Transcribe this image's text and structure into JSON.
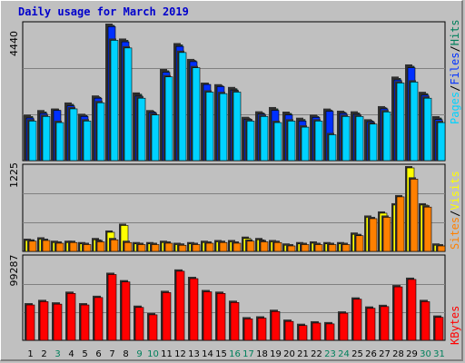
{
  "title": "Daily usage for March 2019",
  "colors": {
    "hits": "#00805c",
    "files": "#0030ff",
    "pages": "#00d2ff",
    "visits": "#ffff00",
    "sites": "#ff8000",
    "kbytes": "#ff0000",
    "separator": "#000000",
    "weekday_label": "#000000",
    "weekend_label": "#00805c"
  },
  "chart_data": [
    {
      "type": "bar",
      "name": "hits-files-pages",
      "ymax_label": "4440",
      "ylim": [
        0,
        4440
      ],
      "legend": [
        "Pages",
        "/",
        "Files",
        "/",
        "Hits"
      ],
      "categories": [
        "1",
        "2",
        "3",
        "4",
        "5",
        "6",
        "7",
        "8",
        "9",
        "10",
        "11",
        "12",
        "13",
        "14",
        "15",
        "16",
        "17",
        "18",
        "19",
        "20",
        "21",
        "22",
        "23",
        "24",
        "25",
        "26",
        "27",
        "28",
        "29",
        "30",
        "31"
      ],
      "weekend_days": [
        3,
        9,
        10,
        16,
        17,
        23,
        24,
        30,
        31
      ],
      "series": [
        {
          "name": "Hits",
          "values": [
            1450,
            1600,
            1650,
            1850,
            1480,
            2080,
            4440,
            3950,
            2180,
            1600,
            2950,
            3800,
            3280,
            2500,
            2450,
            2360,
            1380,
            1560,
            1700,
            1550,
            1350,
            1450,
            1650,
            1580,
            1560,
            1300,
            1730,
            2700,
            3100,
            2200,
            1400
          ]
        },
        {
          "name": "Files",
          "values": [
            1400,
            1550,
            1650,
            1800,
            1450,
            2050,
            4400,
            3900,
            2120,
            1580,
            2900,
            3750,
            3250,
            2500,
            2430,
            2320,
            1360,
            1530,
            1650,
            1500,
            1300,
            1420,
            1620,
            1550,
            1520,
            1280,
            1700,
            2650,
            3050,
            2150,
            1350
          ]
        },
        {
          "name": "Pages",
          "values": [
            1300,
            1450,
            1250,
            1700,
            1300,
            1900,
            3950,
            3700,
            2050,
            1500,
            2750,
            3550,
            3050,
            2250,
            2200,
            2250,
            1300,
            1450,
            1250,
            1300,
            1100,
            1300,
            850,
            1450,
            1450,
            1200,
            1600,
            2550,
            2580,
            2050,
            1250
          ]
        }
      ]
    },
    {
      "type": "bar",
      "name": "sites-visits",
      "ymax_label": "1225",
      "ylim": [
        0,
        1225
      ],
      "legend": [
        "Sites",
        "/",
        "Visits"
      ],
      "categories": [
        "1",
        "2",
        "3",
        "4",
        "5",
        "6",
        "7",
        "8",
        "9",
        "10",
        "11",
        "12",
        "13",
        "14",
        "15",
        "16",
        "17",
        "18",
        "19",
        "20",
        "21",
        "22",
        "23",
        "24",
        "25",
        "26",
        "27",
        "28",
        "29",
        "30",
        "31"
      ],
      "series": [
        {
          "name": "Visits",
          "values": [
            160,
            180,
            130,
            130,
            110,
            170,
            280,
            380,
            110,
            110,
            130,
            100,
            110,
            130,
            140,
            140,
            190,
            170,
            140,
            90,
            110,
            120,
            110,
            110,
            250,
            500,
            560,
            680,
            1225,
            680,
            90
          ]
        },
        {
          "name": "Sites",
          "values": [
            150,
            160,
            120,
            130,
            100,
            140,
            170,
            130,
            100,
            100,
            120,
            90,
            100,
            120,
            130,
            120,
            150,
            140,
            130,
            80,
            100,
            100,
            100,
            100,
            230,
            480,
            500,
            800,
            1060,
            650,
            80
          ]
        }
      ]
    },
    {
      "type": "bar",
      "name": "kbytes",
      "ymax_label": "99287",
      "ylim": [
        0,
        99287
      ],
      "legend": [
        "KBytes"
      ],
      "categories": [
        "1",
        "2",
        "3",
        "4",
        "5",
        "6",
        "7",
        "8",
        "9",
        "10",
        "11",
        "12",
        "13",
        "14",
        "15",
        "16",
        "17",
        "18",
        "19",
        "20",
        "21",
        "22",
        "23",
        "24",
        "25",
        "26",
        "27",
        "28",
        "29",
        "30",
        "31"
      ],
      "series": [
        {
          "name": "KBytes",
          "values": [
            43000,
            47000,
            44000,
            57000,
            43000,
            52000,
            80000,
            71000,
            40000,
            31000,
            58000,
            84000,
            75000,
            59000,
            57000,
            46000,
            26000,
            27000,
            35000,
            23000,
            18000,
            21000,
            20000,
            33000,
            50000,
            39000,
            41000,
            65000,
            74000,
            47000,
            28000
          ]
        }
      ]
    }
  ]
}
